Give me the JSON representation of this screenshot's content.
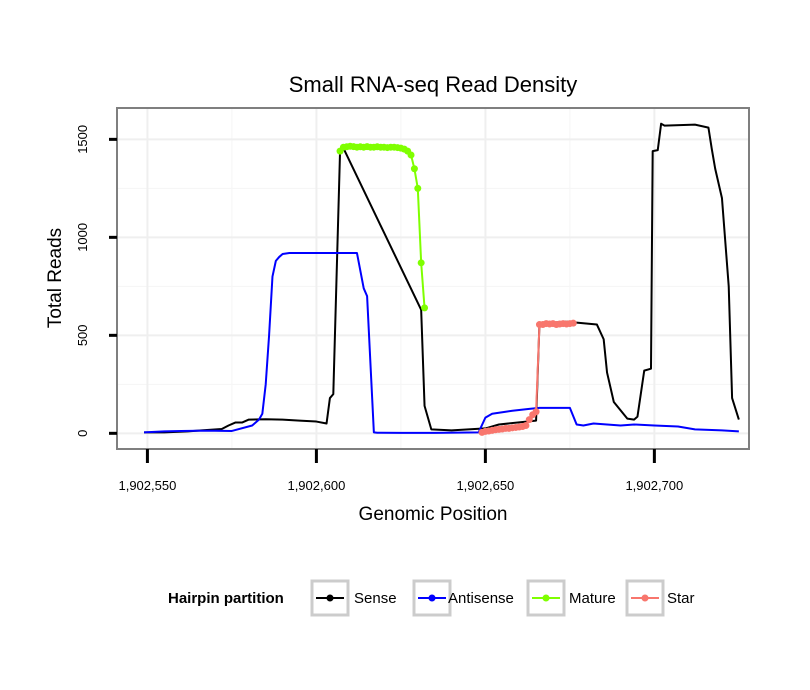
{
  "chart_data": {
    "type": "line",
    "title": "Small RNA-seq Read Density",
    "xlabel": "Genomic Position",
    "ylabel": "Total Reads",
    "xlim": [
      1902541,
      1902728
    ],
    "ylim": [
      -80,
      1660
    ],
    "x_ticks": [
      1902550,
      1902600,
      1902650,
      1902700
    ],
    "x_tick_labels": [
      "1,902,550",
      "1,902,600",
      "1,902,650",
      "1,902,700"
    ],
    "y_ticks": [
      0,
      500,
      1000,
      1500
    ],
    "y_tick_labels": [
      "0",
      "500",
      "1000",
      "1500"
    ],
    "legend": {
      "title": "Hairpin partition",
      "position": "bottom",
      "entries": [
        "Sense",
        "Antisense",
        "Mature",
        "Star"
      ]
    },
    "series": [
      {
        "name": "Sense",
        "color": "#000000",
        "markers": false,
        "x": [
          1902549,
          1902555,
          1902562,
          1902566,
          1902572,
          1902574,
          1902576,
          1902578,
          1902580,
          1902585,
          1902590,
          1902595,
          1902600,
          1902603,
          1902604,
          1902605,
          1902607,
          1902608,
          1902631,
          1902632,
          1902634,
          1902640,
          1902645,
          1902650,
          1902654,
          1902665,
          1902666,
          1902674,
          1902677,
          1902683,
          1902685,
          1902686,
          1902688,
          1902692,
          1902694,
          1902695,
          1902697,
          1902699,
          1902699.5,
          1902701,
          1902702,
          1902703,
          1902712,
          1902716,
          1902717,
          1902718,
          1902720,
          1902722,
          1902723,
          1902725
        ],
        "y": [
          5,
          5,
          10,
          15,
          22,
          40,
          55,
          55,
          70,
          72,
          70,
          65,
          60,
          50,
          180,
          200,
          1440,
          1455,
          630,
          140,
          20,
          15,
          20,
          25,
          45,
          65,
          560,
          570,
          565,
          555,
          480,
          310,
          160,
          75,
          70,
          85,
          320,
          330,
          1440,
          1445,
          1580,
          1570,
          1575,
          1560,
          1450,
          1350,
          1200,
          750,
          180,
          70
        ]
      },
      {
        "name": "Antisense",
        "color": "#0000ff",
        "markers": false,
        "x": [
          1902549,
          1902555,
          1902560,
          1902565,
          1902570,
          1902575,
          1902581,
          1902583,
          1902584,
          1902585,
          1902586,
          1902587,
          1902588,
          1902589,
          1902590,
          1902592,
          1902594,
          1902602,
          1902612,
          1902614,
          1902615,
          1902617,
          1902618,
          1902625,
          1902635,
          1902648,
          1902650,
          1902652,
          1902656,
          1902658,
          1902663,
          1902666,
          1902675,
          1902677,
          1902679,
          1902682,
          1902690,
          1902694,
          1902700,
          1902707,
          1902712,
          1902720,
          1902725
        ],
        "y": [
          5,
          10,
          12,
          13,
          13,
          12,
          40,
          70,
          100,
          250,
          500,
          800,
          880,
          900,
          915,
          920,
          920,
          920,
          920,
          740,
          700,
          5,
          3,
          2,
          2,
          5,
          80,
          100,
          110,
          115,
          125,
          130,
          130,
          45,
          40,
          50,
          40,
          45,
          40,
          35,
          20,
          15,
          10
        ]
      },
      {
        "name": "Mature",
        "color": "#7fff00",
        "markers": true,
        "x": [
          1902607,
          1902608,
          1902609,
          1902610,
          1902611,
          1902612,
          1902613,
          1902614,
          1902615,
          1902616,
          1902617,
          1902618,
          1902619,
          1902620,
          1902621,
          1902622,
          1902623,
          1902624,
          1902625,
          1902626,
          1902627,
          1902628,
          1902629,
          1902630,
          1902631,
          1902632
        ],
        "y": [
          1440,
          1460,
          1462,
          1465,
          1463,
          1460,
          1462,
          1460,
          1463,
          1460,
          1460,
          1462,
          1460,
          1460,
          1458,
          1460,
          1460,
          1458,
          1455,
          1450,
          1440,
          1420,
          1350,
          1250,
          870,
          640
        ]
      },
      {
        "name": "Star",
        "color": "#f8766d",
        "markers": true,
        "x": [
          1902649,
          1902650,
          1902651,
          1902652,
          1902653,
          1902654,
          1902655,
          1902656,
          1902657,
          1902658,
          1902659,
          1902660,
          1902661,
          1902662,
          1902663,
          1902664,
          1902665,
          1902666,
          1902667,
          1902668,
          1902669,
          1902670,
          1902671,
          1902672,
          1902673,
          1902674,
          1902675,
          1902676
        ],
        "y": [
          5,
          10,
          12,
          15,
          18,
          20,
          22,
          25,
          25,
          28,
          30,
          32,
          35,
          40,
          70,
          95,
          110,
          555,
          555,
          560,
          558,
          560,
          555,
          558,
          560,
          558,
          560,
          562
        ]
      }
    ]
  }
}
